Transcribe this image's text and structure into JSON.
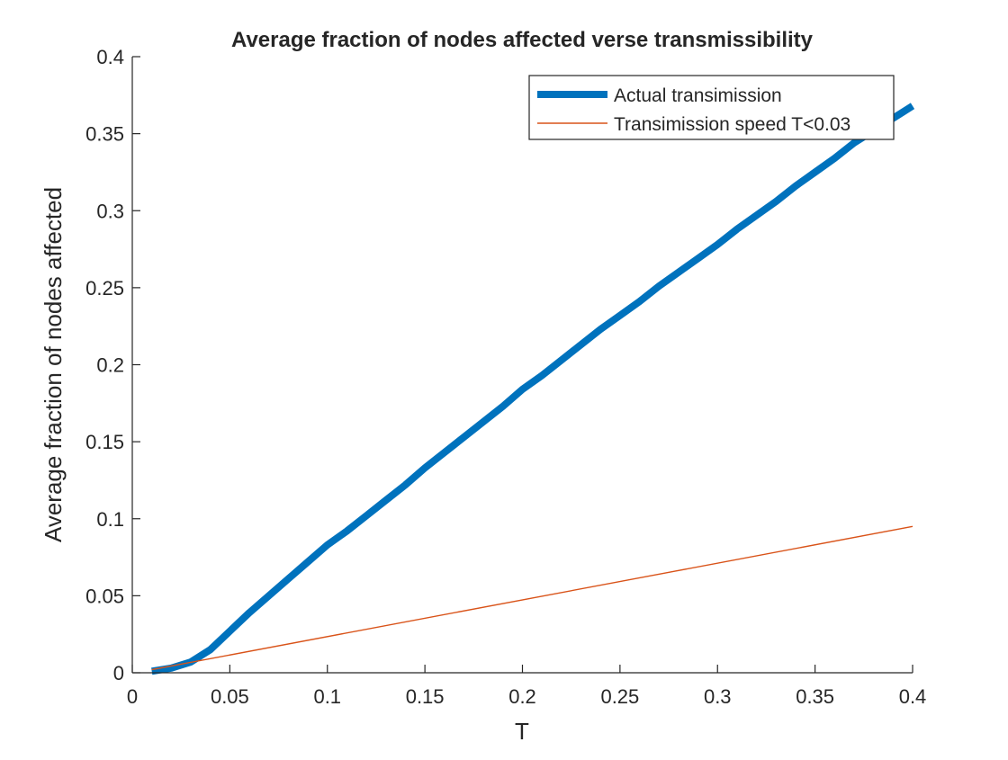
{
  "chart_data": {
    "type": "line",
    "title": "Average fraction of nodes affected verse transmissibility",
    "xlabel": "T",
    "ylabel": "Average fraction of nodes affected",
    "xlim": [
      0,
      0.4
    ],
    "ylim": [
      0,
      0.4
    ],
    "xticks": [
      0,
      0.05,
      0.1,
      0.15,
      0.2,
      0.25,
      0.3,
      0.35,
      0.4
    ],
    "yticks": [
      0,
      0.05,
      0.1,
      0.15,
      0.2,
      0.25,
      0.3,
      0.35,
      0.4
    ],
    "xtick_labels": [
      "0",
      "0.05",
      "0.1",
      "0.15",
      "0.2",
      "0.25",
      "0.3",
      "0.35",
      "0.4"
    ],
    "ytick_labels": [
      "0",
      "0.05",
      "0.1",
      "0.15",
      "0.2",
      "0.25",
      "0.3",
      "0.35",
      "0.4"
    ],
    "grid": false,
    "legend_position": "top-right",
    "series": [
      {
        "name": "Actual transimission",
        "color": "#0072BD",
        "x": [
          0.01,
          0.02,
          0.03,
          0.04,
          0.05,
          0.06,
          0.07,
          0.08,
          0.09,
          0.1,
          0.11,
          0.12,
          0.13,
          0.14,
          0.15,
          0.16,
          0.17,
          0.18,
          0.19,
          0.2,
          0.21,
          0.22,
          0.23,
          0.24,
          0.25,
          0.26,
          0.27,
          0.28,
          0.29,
          0.3,
          0.31,
          0.32,
          0.33,
          0.34,
          0.35,
          0.36,
          0.37,
          0.38,
          0.39,
          0.4
        ],
        "y": [
          0.001,
          0.003,
          0.007,
          0.015,
          0.027,
          0.039,
          0.05,
          0.061,
          0.072,
          0.083,
          0.092,
          0.102,
          0.112,
          0.122,
          0.133,
          0.143,
          0.153,
          0.163,
          0.173,
          0.184,
          0.193,
          0.203,
          0.213,
          0.223,
          0.232,
          0.241,
          0.251,
          0.26,
          0.269,
          0.278,
          0.288,
          0.297,
          0.306,
          0.316,
          0.325,
          0.334,
          0.344,
          0.352,
          0.36,
          0.368
        ]
      },
      {
        "name": "Transimission speed T<0.03",
        "color": "#D95319",
        "x": [
          0.01,
          0.4
        ],
        "y": [
          0.002,
          0.095
        ]
      }
    ]
  }
}
